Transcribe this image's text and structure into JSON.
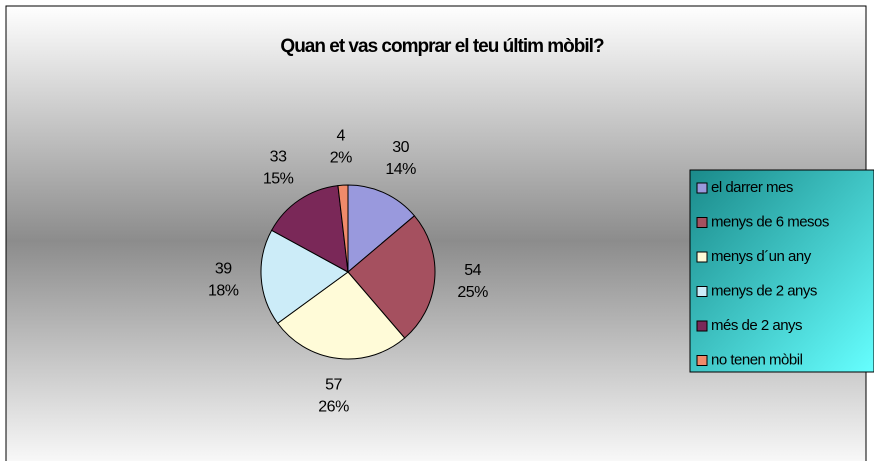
{
  "chart_data": {
    "type": "pie",
    "title": "Quan et vas comprar el teu últim mòbil?",
    "categories": [
      "el darrer mes",
      "menys de 6 mesos",
      "menys d´un any",
      "menys de 2 anys",
      "més de 2 anys",
      "no tenen mòbil"
    ],
    "values": [
      30,
      54,
      57,
      39,
      33,
      4
    ],
    "percent_labels": [
      "14%",
      "25%",
      "26%",
      "18%",
      "15%",
      "2%"
    ],
    "colors": [
      "#9999dd",
      "#a5505f",
      "#fffbd8",
      "#ccecf8",
      "#7a2858",
      "#f08a6a"
    ]
  }
}
